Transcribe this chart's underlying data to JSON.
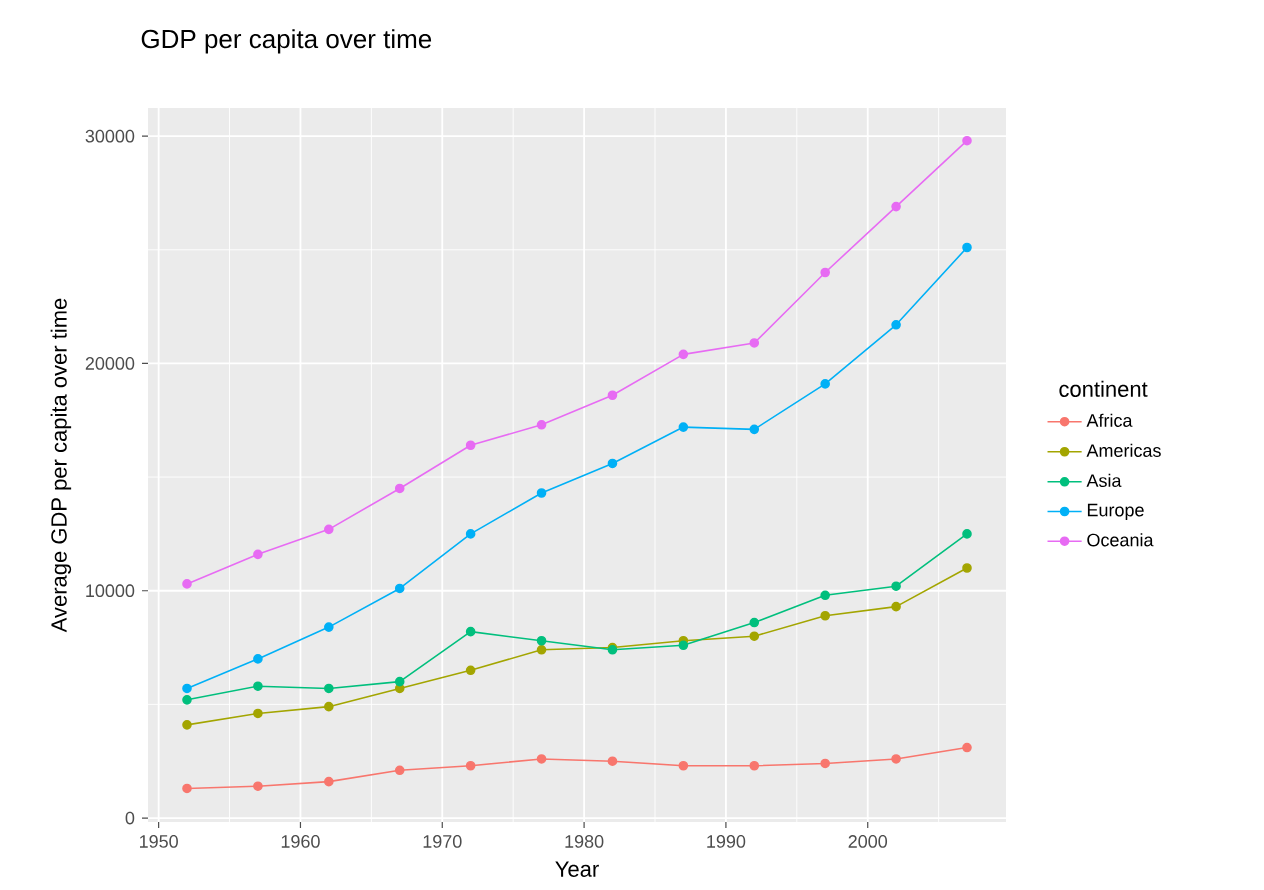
{
  "chart_data": {
    "type": "line",
    "title": "GDP per capita over time",
    "xlabel": "Year",
    "ylabel": "Average GDP per capita over time",
    "legend_title": "continent",
    "x": [
      1952,
      1957,
      1962,
      1967,
      1972,
      1977,
      1982,
      1987,
      1992,
      1997,
      2002,
      2007
    ],
    "series": [
      {
        "name": "Africa",
        "color": "#F8766D",
        "values": [
          1300,
          1400,
          1600,
          2100,
          2300,
          2600,
          2500,
          2300,
          2300,
          2400,
          2600,
          3100
        ]
      },
      {
        "name": "Americas",
        "color": "#A3A500",
        "values": [
          4100,
          4600,
          4900,
          5700,
          6500,
          7400,
          7500,
          7800,
          8000,
          8900,
          9300,
          11000
        ]
      },
      {
        "name": "Asia",
        "color": "#00BF7D",
        "values": [
          5200,
          5800,
          5700,
          6000,
          8200,
          7800,
          7400,
          7600,
          8600,
          9800,
          10200,
          12500
        ]
      },
      {
        "name": "Europe",
        "color": "#00B0F6",
        "values": [
          5700,
          7000,
          8400,
          10100,
          12500,
          14300,
          15600,
          17200,
          17100,
          19100,
          21700,
          25100
        ]
      },
      {
        "name": "Oceania",
        "color": "#E76BF3",
        "values": [
          10300,
          11600,
          12700,
          14500,
          16400,
          17300,
          18600,
          20400,
          20900,
          24000,
          26900,
          29800
        ]
      }
    ],
    "xlim": [
      1949.25,
      2009.75
    ],
    "ylim": [
      -175,
      31238
    ],
    "xticks": [
      1950,
      1960,
      1970,
      1980,
      1990,
      2000
    ],
    "yticks": [
      0,
      10000,
      20000,
      30000
    ],
    "grid": true,
    "legend": "right",
    "marker": "circle",
    "line_style": "solid"
  }
}
